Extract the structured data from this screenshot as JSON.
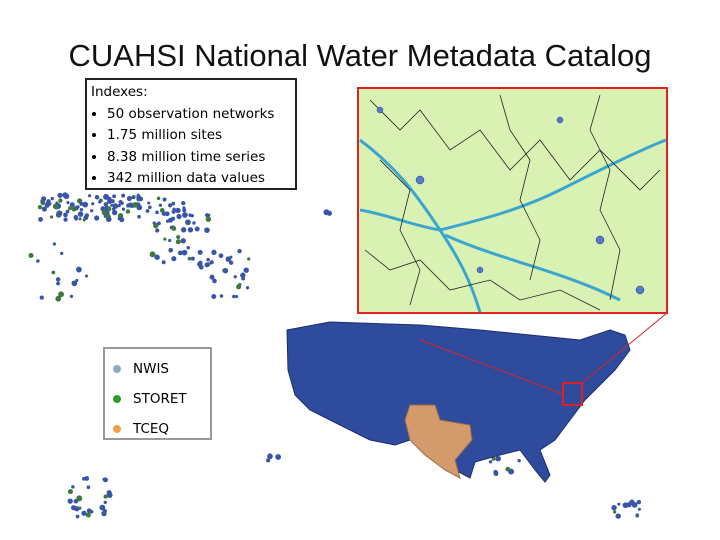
{
  "title": "CUAHSI National Water Metadata Catalog",
  "indexes": {
    "heading": "Indexes:",
    "items": [
      "50 observation networks",
      "1.75 million sites",
      "8.38 million time series",
      "342 million data values"
    ]
  },
  "legend": [
    {
      "label": "NWIS",
      "color": "#8ea9b9"
    },
    {
      "label": "STORET",
      "color": "#2e9a2e"
    },
    {
      "label": "TCEQ",
      "color": "#f0a04a"
    }
  ]
}
